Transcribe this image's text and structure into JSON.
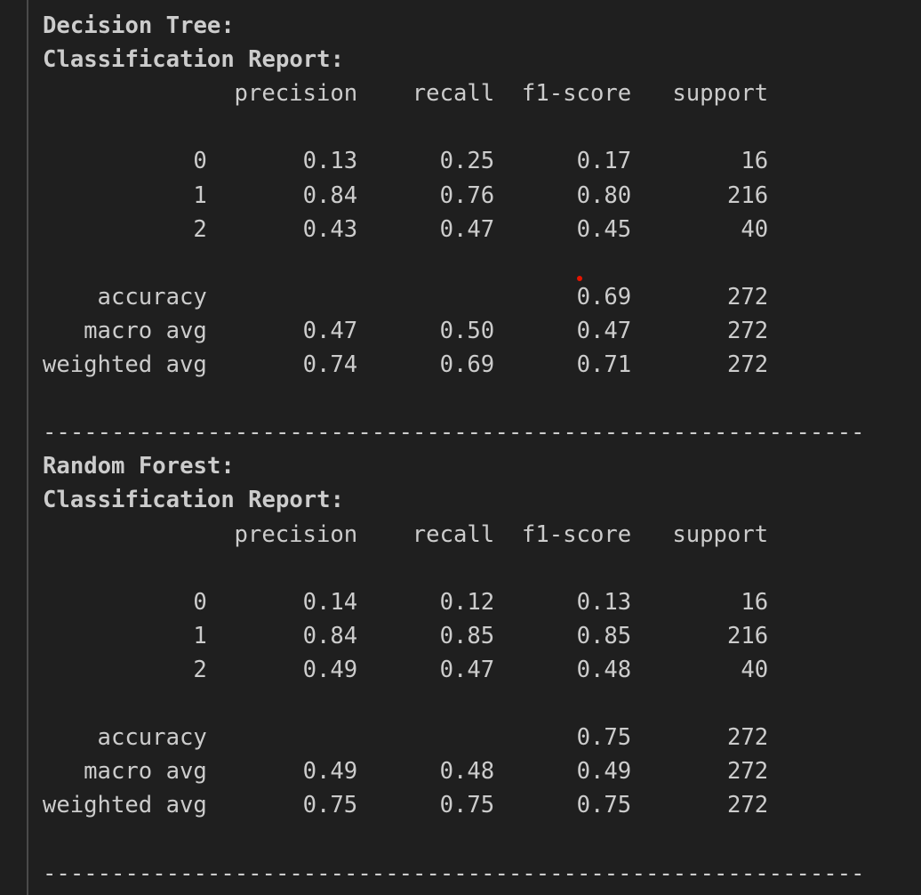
{
  "sections": [
    {
      "title": "Decision Tree:",
      "subtitle": "Classification Report:",
      "header": [
        "precision",
        "recall",
        "f1-score",
        "support"
      ],
      "class_rows": [
        {
          "label": "0",
          "precision": "0.13",
          "recall": "0.25",
          "f1_score": "0.17",
          "support": "16"
        },
        {
          "label": "1",
          "precision": "0.84",
          "recall": "0.76",
          "f1_score": "0.80",
          "support": "216"
        },
        {
          "label": "2",
          "precision": "0.43",
          "recall": "0.47",
          "f1_score": "0.45",
          "support": "40"
        }
      ],
      "avg_rows": [
        {
          "label": "accuracy",
          "f1_score": "0.69",
          "support": "272"
        },
        {
          "label": "macro avg",
          "precision": "0.47",
          "recall": "0.50",
          "f1_score": "0.47",
          "support": "272"
        },
        {
          "label": "weighted avg",
          "precision": "0.74",
          "recall": "0.69",
          "f1_score": "0.71",
          "support": "272"
        }
      ],
      "separator": "------------------------------------------------------------"
    },
    {
      "title": "Random Forest:",
      "subtitle": "Classification Report:",
      "header": [
        "precision",
        "recall",
        "f1-score",
        "support"
      ],
      "class_rows": [
        {
          "label": "0",
          "precision": "0.14",
          "recall": "0.12",
          "f1_score": "0.13",
          "support": "16"
        },
        {
          "label": "1",
          "precision": "0.84",
          "recall": "0.85",
          "f1_score": "0.85",
          "support": "216"
        },
        {
          "label": "2",
          "precision": "0.49",
          "recall": "0.47",
          "f1_score": "0.48",
          "support": "40"
        }
      ],
      "avg_rows": [
        {
          "label": "accuracy",
          "f1_score": "0.75",
          "support": "272"
        },
        {
          "label": "macro avg",
          "precision": "0.49",
          "recall": "0.48",
          "f1_score": "0.49",
          "support": "272"
        },
        {
          "label": "weighted avg",
          "precision": "0.75",
          "recall": "0.75",
          "f1_score": "0.75",
          "support": "272"
        }
      ],
      "separator": "------------------------------------------------------------"
    }
  ]
}
